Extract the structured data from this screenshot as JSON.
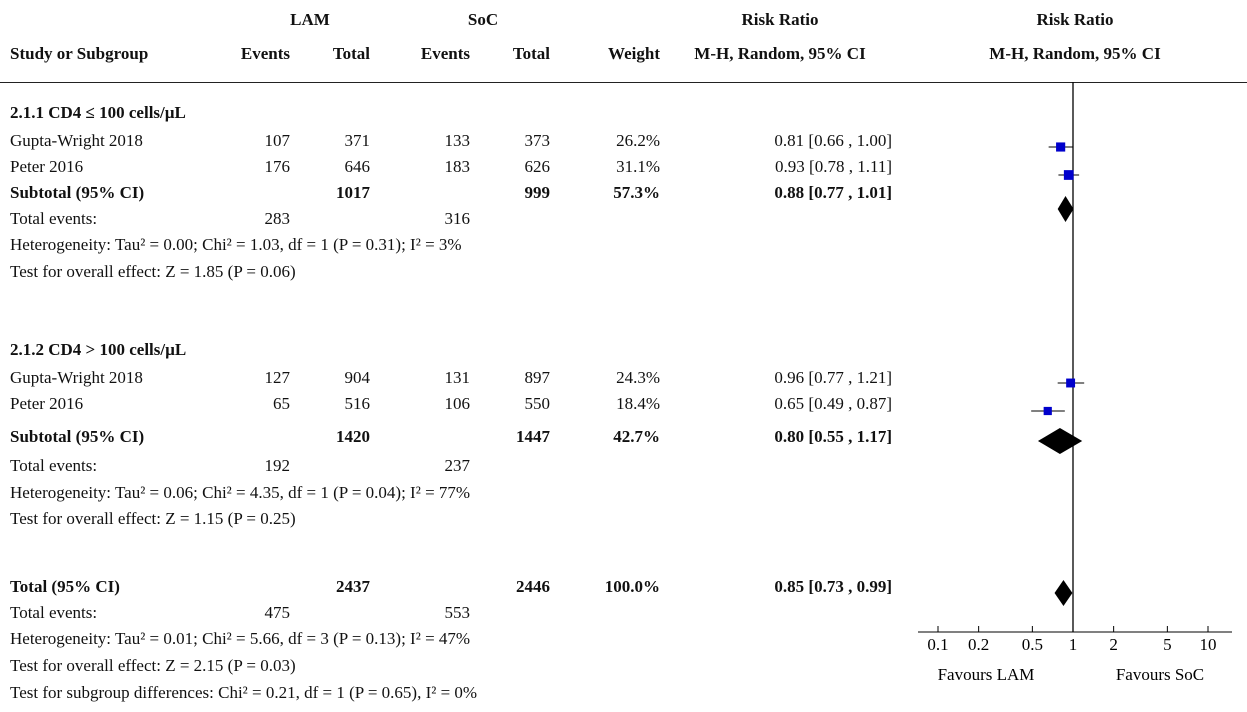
{
  "header": {
    "group1": "LAM",
    "group2": "SoC",
    "effect_title": "Risk Ratio",
    "plot_title": "Risk Ratio",
    "study_col": "Study or Subgroup",
    "events": "Events",
    "total": "Total",
    "weight": "Weight",
    "method": "M-H, Random, 95% CI",
    "plot_method": "M-H, Random, 95% CI"
  },
  "subgroups": [
    {
      "title": "2.1.1 CD4 ≤ 100 cells/µL",
      "studies": [
        {
          "name": "Gupta-Wright 2018",
          "e1": "107",
          "n1": "371",
          "e2": "133",
          "n2": "373",
          "weight": "26.2%",
          "ci_text": "0.81 [0.66 , 1.00]"
        },
        {
          "name": "Peter 2016",
          "e1": "176",
          "n1": "646",
          "e2": "183",
          "n2": "626",
          "weight": "31.1%",
          "ci_text": "0.93 [0.78 , 1.11]"
        }
      ],
      "subtotal": {
        "label": "Subtotal (95% CI)",
        "n1": "1017",
        "n2": "999",
        "weight": "57.3%",
        "ci_text": "0.88 [0.77 , 1.01]"
      },
      "events": {
        "label": "Total events:",
        "e1": "283",
        "e2": "316"
      },
      "heterogeneity": "Heterogeneity: Tau² = 0.00; Chi² = 1.03, df = 1 (P = 0.31); I² = 3%",
      "overall": "Test for overall effect: Z = 1.85 (P = 0.06)"
    },
    {
      "title": "2.1.2 CD4 > 100 cells/µL",
      "studies": [
        {
          "name": "Gupta-Wright 2018",
          "e1": "127",
          "n1": "904",
          "e2": "131",
          "n2": "897",
          "weight": "24.3%",
          "ci_text": "0.96 [0.77 , 1.21]"
        },
        {
          "name": "Peter 2016",
          "e1": "65",
          "n1": "516",
          "e2": "106",
          "n2": "550",
          "weight": "18.4%",
          "ci_text": "0.65 [0.49 , 0.87]"
        }
      ],
      "subtotal": {
        "label": "Subtotal (95% CI)",
        "n1": "1420",
        "n2": "1447",
        "weight": "42.7%",
        "ci_text": "0.80 [0.55 , 1.17]"
      },
      "events": {
        "label": "Total events:",
        "e1": "192",
        "e2": "237"
      },
      "heterogeneity": "Heterogeneity: Tau² = 0.06; Chi² = 4.35, df = 1 (P = 0.04); I² = 77%",
      "overall": "Test for overall effect: Z = 1.15 (P = 0.25)"
    }
  ],
  "total": {
    "label": "Total (95% CI)",
    "n1": "2437",
    "n2": "2446",
    "weight": "100.0%",
    "ci_text": "0.85 [0.73 , 0.99]",
    "events": {
      "label": "Total events:",
      "e1": "475",
      "e2": "553"
    },
    "heterogeneity": "Heterogeneity: Tau² = 0.01; Chi² = 5.66, df = 3 (P = 0.13); I² = 47%",
    "overall": "Test for overall effect: Z = 2.15 (P = 0.03)",
    "subgroup_diff": "Test for subgroup differences: Chi² = 0.21, df = 1 (P = 0.65), I² = 0%"
  },
  "axis": {
    "ticks": [
      "0.1",
      "0.2",
      "0.5",
      "1",
      "2",
      "5",
      "10"
    ],
    "favours_left": "Favours LAM",
    "favours_right": "Favours SoC"
  },
  "chart_data": {
    "type": "forest",
    "scale": "log",
    "xlim": [
      0.1,
      10
    ],
    "xticks": [
      0.1,
      0.2,
      0.5,
      1,
      2,
      5,
      10
    ],
    "reference_line": 1,
    "marker_color": "#0000cc",
    "studies": [
      {
        "name": "Gupta-Wright 2018",
        "subgroup": "2.1.1 CD4 ≤ 100 cells/µL",
        "rr": 0.81,
        "lo": 0.66,
        "hi": 1.0,
        "weight": 26.2
      },
      {
        "name": "Peter 2016",
        "subgroup": "2.1.1 CD4 ≤ 100 cells/µL",
        "rr": 0.93,
        "lo": 0.78,
        "hi": 1.11,
        "weight": 31.1
      },
      {
        "name": "Gupta-Wright 2018",
        "subgroup": "2.1.2 CD4 > 100 cells/µL",
        "rr": 0.96,
        "lo": 0.77,
        "hi": 1.21,
        "weight": 24.3
      },
      {
        "name": "Peter 2016",
        "subgroup": "2.1.2 CD4 > 100 cells/µL",
        "rr": 0.65,
        "lo": 0.49,
        "hi": 0.87,
        "weight": 18.4
      }
    ],
    "pooled": [
      {
        "name": "Subtotal (95% CI)",
        "subgroup": "2.1.1 CD4 ≤ 100 cells/µL",
        "rr": 0.88,
        "lo": 0.77,
        "hi": 1.01
      },
      {
        "name": "Subtotal (95% CI)",
        "subgroup": "2.1.2 CD4 > 100 cells/µL",
        "rr": 0.8,
        "lo": 0.55,
        "hi": 1.17
      },
      {
        "name": "Total (95% CI)",
        "rr": 0.85,
        "lo": 0.73,
        "hi": 0.99
      }
    ]
  }
}
